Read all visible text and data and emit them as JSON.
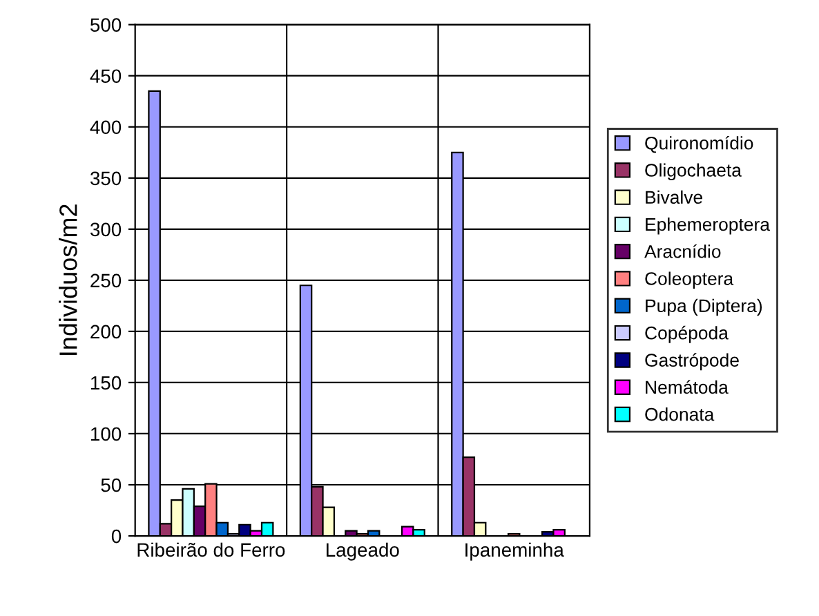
{
  "chart_data": {
    "type": "bar",
    "ylabel": "Individuos/m2",
    "categories": [
      "Ribeirão do Ferro",
      "Lageado",
      "Ipaneminha"
    ],
    "series": [
      {
        "name": "Quironomídio",
        "color": "#9999ff",
        "values": [
          435,
          245,
          375
        ]
      },
      {
        "name": "Oligochaeta",
        "color": "#993366",
        "values": [
          12,
          48,
          77
        ]
      },
      {
        "name": "Bivalve",
        "color": "#ffffcc",
        "values": [
          35,
          28,
          13
        ]
      },
      {
        "name": "Ephemeroptera",
        "color": "#ccffff",
        "values": [
          46,
          null,
          null
        ]
      },
      {
        "name": "Aracnídio",
        "color": "#660066",
        "values": [
          29,
          5,
          null
        ]
      },
      {
        "name": "Coleoptera",
        "color": "#ff8080",
        "values": [
          51,
          2,
          2
        ]
      },
      {
        "name": "Pupa (Diptera)",
        "color": "#0066cc",
        "values": [
          13,
          5,
          null
        ]
      },
      {
        "name": "Copépoda",
        "color": "#ccccff",
        "values": [
          2,
          null,
          null
        ]
      },
      {
        "name": "Gastrópode",
        "color": "#000080",
        "values": [
          11,
          null,
          4
        ]
      },
      {
        "name": "Nemátoda",
        "color": "#ff00ff",
        "values": [
          5,
          9,
          6
        ]
      },
      {
        "name": "Odonata",
        "color": "#00ffff",
        "values": [
          13,
          6,
          null
        ]
      }
    ],
    "ylim": [
      0,
      500
    ],
    "yticks": [
      0,
      50,
      100,
      150,
      200,
      250,
      300,
      350,
      400,
      450,
      500
    ],
    "grid": true,
    "legend": "right"
  }
}
